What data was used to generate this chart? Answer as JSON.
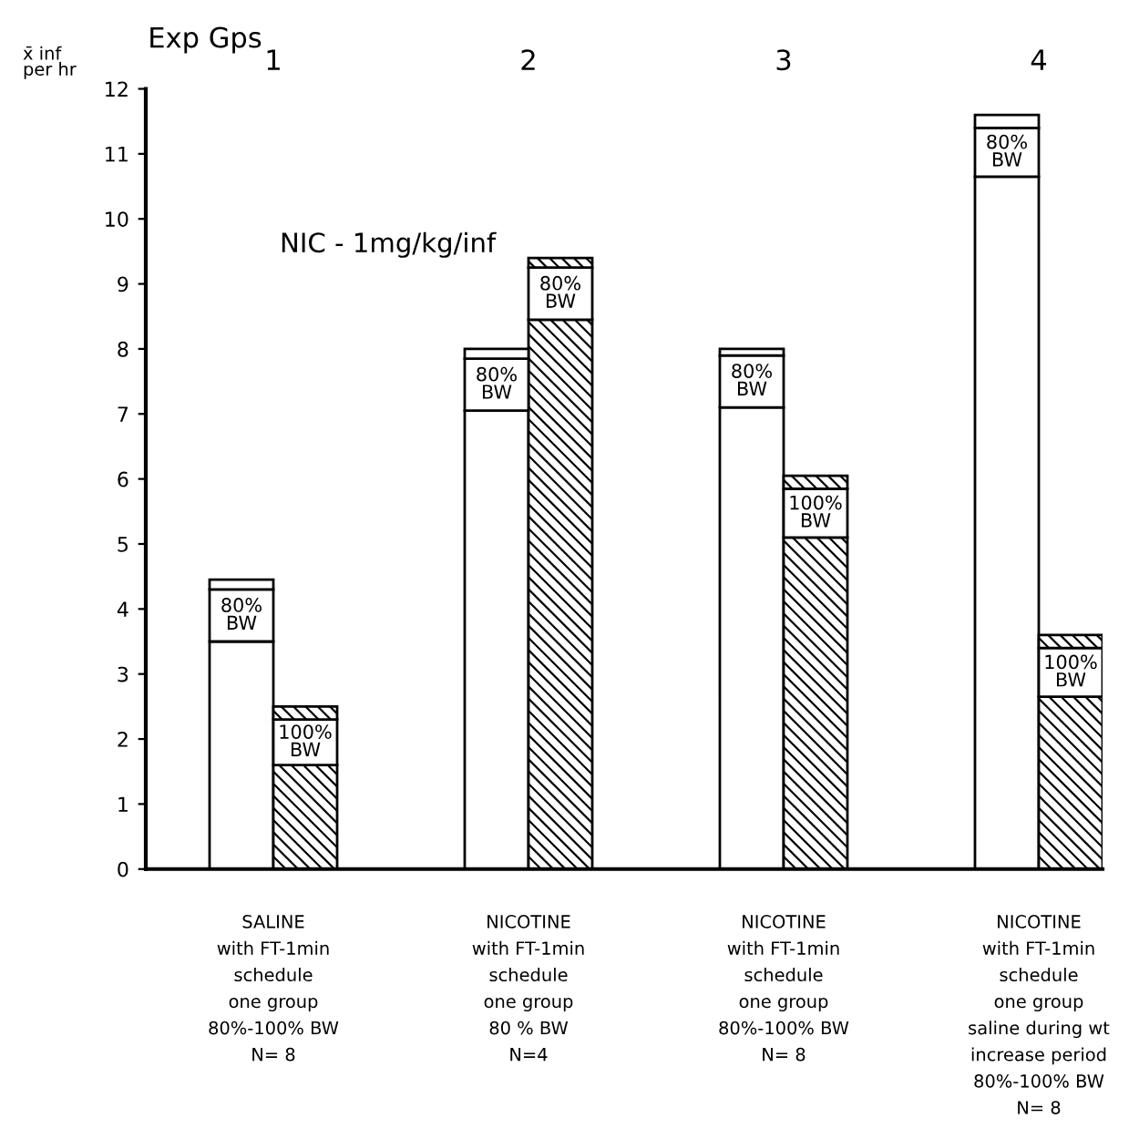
{
  "chart_data": {
    "type": "bar",
    "title": "Exp Gps",
    "ylabel": "x̄ inf\nper hr",
    "stacked": true,
    "categories": [
      null,
      null,
      null,
      null,
      null,
      null,
      null,
      null,
      null,
      null,
      null,
      null,
      null,
      null,
      null
    ],
    "series": [
      {
        "colors": [
          null,
          "#ffffff",
          "#000000",
          null,
          null,
          "#ffffff",
          "#000000",
          null,
          null,
          "#ffffff",
          "#000000",
          null,
          null,
          "#ffffff",
          "#000000"
        ],
        "values": [
          null,
          3.5,
          1.6,
          null,
          null,
          7.05,
          8.45,
          null,
          null,
          7.1,
          5.1,
          null,
          null,
          10.65,
          2.65
        ]
      },
      {
        "colors": [
          null,
          "#ffffff",
          "#ffffff",
          null,
          null,
          "#ffffff",
          "#ffffff",
          null,
          null,
          "#ffffff",
          "#ffffff",
          null,
          null,
          "#ffffff",
          "#ffffff"
        ],
        "values": [
          null,
          0.8,
          0.7,
          null,
          null,
          0.8,
          0.8,
          null,
          null,
          0.8,
          0.75,
          null,
          null,
          0.75,
          0.75
        ]
      },
      {
        "colors": [
          null,
          "#ffffff",
          "#000000",
          null,
          null,
          "#ffffff",
          "#000000",
          null,
          null,
          "#ffffff",
          "#000000",
          null,
          null,
          "#ffffff",
          "#000000"
        ],
        "values": [
          null,
          0.15,
          0.2,
          null,
          null,
          0.15,
          0.15,
          null,
          null,
          0.1,
          0.2,
          null,
          null,
          0.2,
          0.2
        ]
      }
    ],
    "ylim": [
      0,
      12
    ],
    "yticks": [
      0,
      1,
      2,
      3,
      4,
      5,
      6,
      7,
      8,
      9,
      10,
      11,
      12
    ],
    "grid": false,
    "legend": false,
    "annotations": [
      "NIC - 1mg/kg/inf",
      "1",
      "2",
      "3",
      "4",
      "SALINE\nwith FT-1min\nschedule\none group\n80%-100% BW\nN= 8",
      "NICOTINE\nwith FT-1min\nschedule\none group\n80 % BW\nN=4",
      "NICOTINE\nwith FT-1min\nschedule\none group\n80%-100% BW\nN= 8",
      "NICOTINE\nwith FT-1min\nschedule\none group\nsaline during wt\nincrease period\n80%-100% BW\nN= 8",
      "80%\nBW",
      "100%\nBW",
      "80%\nBW",
      "80%\nBW",
      "80%\nBW",
      "100%\nBW",
      "80%\nBW",
      "100%\nBW"
    ]
  }
}
